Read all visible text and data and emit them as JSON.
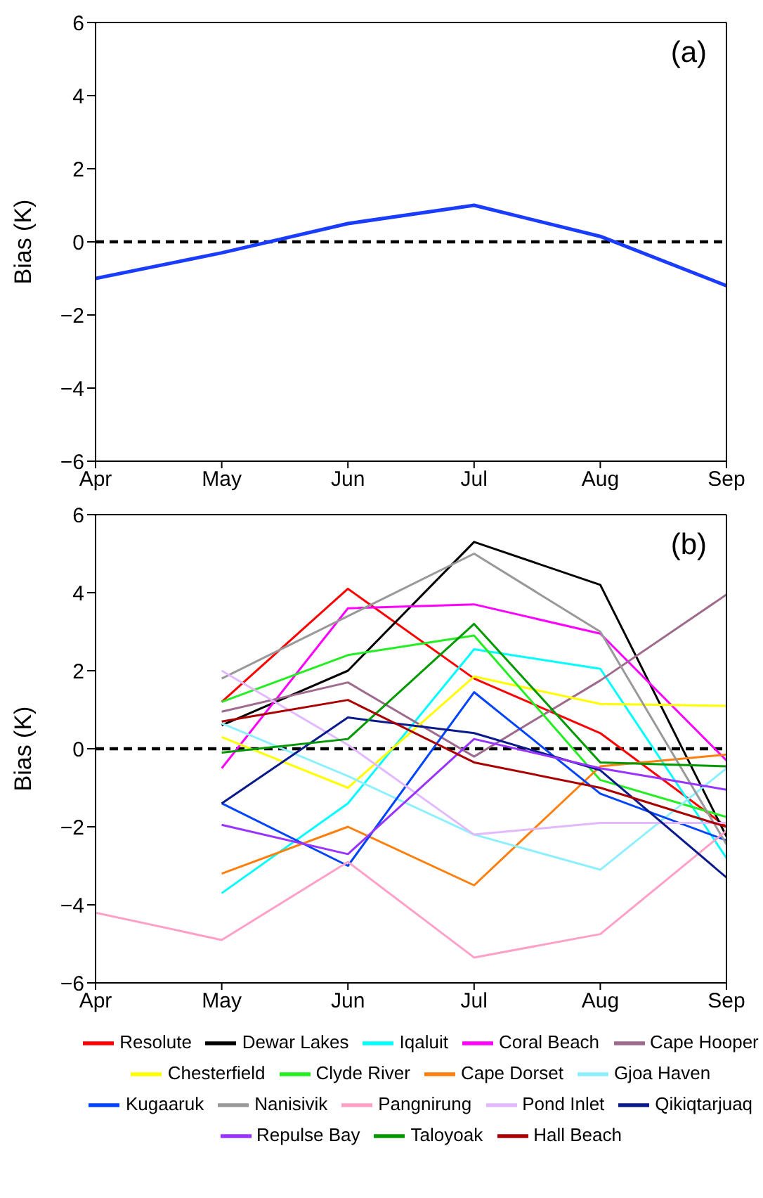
{
  "chart_data": [
    {
      "type": "line",
      "ylabel": "Bias (K)",
      "categories": [
        "Apr",
        "May",
        "Jun",
        "Jul",
        "Aug",
        "Sep"
      ],
      "series": [
        {
          "color": "#1a3cff",
          "values": [
            -1.0,
            -0.3,
            0.5,
            1.0,
            0.15,
            -1.2
          ]
        }
      ],
      "ylim": [
        -6,
        6
      ],
      "yticks": [
        -6,
        -4,
        -2,
        0,
        2,
        4,
        6
      ],
      "annotations": [
        "(a)"
      ],
      "ref_lines": [
        {
          "axis": "y",
          "value": 0,
          "color": "#000000",
          "line_style": "dashed"
        }
      ]
    },
    {
      "type": "line",
      "ylabel": "Bias (K)",
      "categories": [
        "Apr",
        "May",
        "Jun",
        "Jul",
        "Aug",
        "Sep"
      ],
      "series": [
        {
          "name": "Resolute",
          "color": "#ff0000",
          "values": [
            null,
            1.2,
            4.1,
            1.8,
            0.4,
            -2.0
          ]
        },
        {
          "name": "Dewar Lakes",
          "color": "#000000",
          "values": [
            null,
            0.6,
            2.0,
            5.3,
            4.2,
            -2.25
          ]
        },
        {
          "name": "Iqaluit",
          "color": "#00ffff",
          "values": [
            null,
            -3.7,
            -1.4,
            2.55,
            2.05,
            -2.8
          ]
        },
        {
          "name": "Coral Beach",
          "color": "#ff00ff",
          "values": [
            null,
            -0.5,
            3.6,
            3.7,
            2.95,
            -0.3
          ]
        },
        {
          "name": "Cape Hooper",
          "color": "#9e6b8f",
          "values": [
            null,
            0.95,
            1.7,
            -0.2,
            1.75,
            3.95
          ]
        },
        {
          "name": "Chesterfield",
          "color": "#ffff00",
          "values": [
            null,
            0.3,
            -1.0,
            1.85,
            1.15,
            1.1
          ]
        },
        {
          "name": "Clyde River",
          "color": "#22ee22",
          "values": [
            null,
            1.2,
            2.4,
            2.9,
            -0.8,
            -1.75
          ]
        },
        {
          "name": "Cape Dorset",
          "color": "#ff7f0e",
          "values": [
            null,
            -3.2,
            -2.0,
            -3.5,
            -0.45,
            -0.15
          ]
        },
        {
          "name": "Gjoa Haven",
          "color": "#8ef0ff",
          "values": [
            null,
            0.65,
            -0.7,
            -2.2,
            -3.1,
            -0.5
          ]
        },
        {
          "name": "Kugaaruk",
          "color": "#0044ff",
          "values": [
            null,
            -1.4,
            -3.0,
            1.45,
            -1.15,
            -2.35
          ]
        },
        {
          "name": "Nanisivik",
          "color": "#999999",
          "values": [
            null,
            1.8,
            3.4,
            5.0,
            3.0,
            -2.45
          ]
        },
        {
          "name": "Pangnirung",
          "color": "#ffa0c8",
          "values": [
            -4.2,
            -4.9,
            -2.9,
            -5.35,
            -4.75,
            -2.1
          ]
        },
        {
          "name": "Pond Inlet",
          "color": "#e2b8ff",
          "values": [
            null,
            2.0,
            0.1,
            -2.2,
            -1.9,
            -1.9
          ]
        },
        {
          "name": "Qikiqtarjuaq",
          "color": "#0a1a8c",
          "values": [
            null,
            -1.4,
            0.8,
            0.4,
            -0.55,
            -3.3
          ]
        },
        {
          "name": "Repulse Bay",
          "color": "#9933ff",
          "values": [
            null,
            -1.95,
            -2.7,
            0.25,
            -0.5,
            -1.05
          ]
        },
        {
          "name": "Taloyoak",
          "color": "#009900",
          "values": [
            null,
            -0.1,
            0.25,
            3.2,
            -0.35,
            -0.45
          ]
        },
        {
          "name": "Hall Beach",
          "color": "#aa0000",
          "values": [
            null,
            0.7,
            1.25,
            -0.35,
            -1.0,
            -2.0
          ]
        }
      ],
      "ylim": [
        -6,
        6
      ],
      "yticks": [
        -6,
        -4,
        -2,
        0,
        2,
        4,
        6
      ],
      "annotations": [
        "(b)"
      ],
      "legend": "bottom",
      "ref_lines": [
        {
          "axis": "y",
          "value": 0,
          "color": "#000000",
          "line_style": "dashed"
        }
      ]
    }
  ]
}
